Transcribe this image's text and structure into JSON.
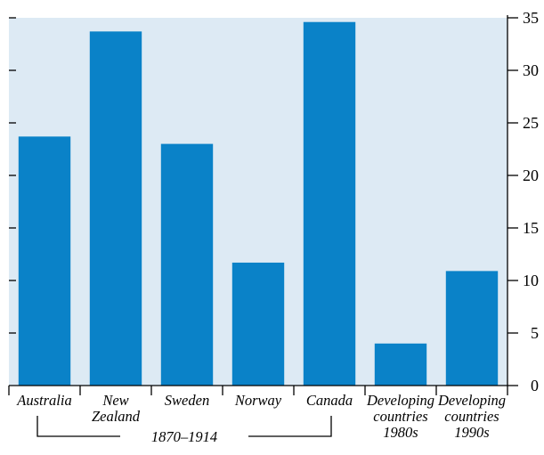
{
  "chart_data": {
    "type": "bar",
    "categories": [
      [
        "Australia"
      ],
      [
        "New",
        "Zealand"
      ],
      [
        "Sweden"
      ],
      [
        "Norway"
      ],
      [
        "Canada"
      ],
      [
        "Developing",
        "countries",
        "1980s"
      ],
      [
        "Developing",
        "countries",
        "1990s"
      ]
    ],
    "values": [
      23.7,
      33.7,
      23.0,
      11.7,
      34.6,
      4.0,
      10.9
    ],
    "ylim": [
      0,
      35
    ],
    "yticks": [
      0,
      5,
      10,
      15,
      20,
      25,
      30,
      35
    ],
    "y_axis_side": "right",
    "group_bracket": {
      "label": "1870–1914",
      "from_category": 0,
      "to_category": 4
    },
    "colors": {
      "bar": "#0a82c8",
      "plot_background": "#ddeaf4",
      "axis": "#000000"
    }
  }
}
